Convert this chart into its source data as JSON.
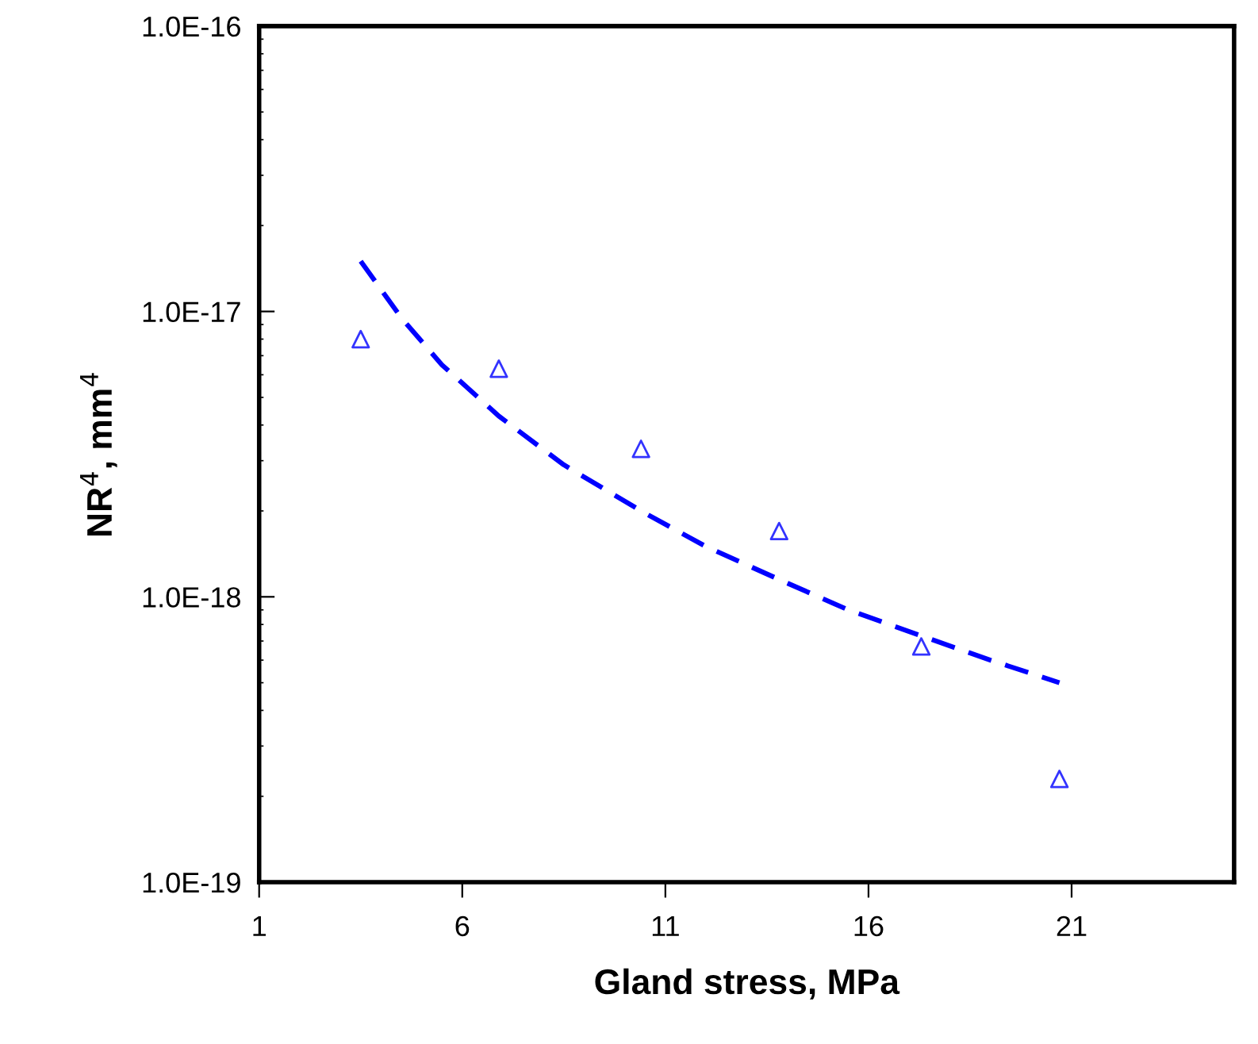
{
  "chart_data": {
    "type": "scatter",
    "xlabel": "Gland stress, MPa",
    "ylabel": "NR$^{4}$, mm$^{4}$",
    "log": "y",
    "xlim": [
      1,
      25
    ],
    "xticks": [
      1,
      6,
      11,
      16,
      21
    ],
    "ylim": [
      1e-19,
      1e-16
    ],
    "yticks": [
      {
        "value": 1e-19,
        "label": "1.0E-19"
      },
      {
        "value": 1e-18,
        "label": "1.0E-18"
      },
      {
        "value": 1e-17,
        "label": "1.0E-17"
      },
      {
        "value": 1e-16,
        "label": "1.0E-16"
      }
    ],
    "grid": false,
    "legend": false,
    "series": [
      {
        "color": "#3333ff",
        "marker": "triangle",
        "x": [
          3.5,
          6.9,
          10.4,
          13.8,
          17.3,
          20.7
        ],
        "values": [
          8e-18,
          6.3e-18,
          3.3e-18,
          1.7e-18,
          6.7e-19,
          2.3e-19
        ]
      },
      {
        "type": "line",
        "color": "#0000ff",
        "line_style": "dashed",
        "marker": "none",
        "x": [
          3.5,
          4.5,
          5.5,
          6.9,
          8.5,
          10.4,
          12,
          13.8,
          15.5,
          17.3,
          19,
          20.7
        ],
        "values": [
          1.5e-17,
          9.5e-18,
          6.5e-18,
          4.3e-18,
          2.9e-18,
          2e-18,
          1.5e-18,
          1.15e-18,
          9e-19,
          7.3e-19,
          6e-19,
          5e-19
        ]
      }
    ]
  }
}
